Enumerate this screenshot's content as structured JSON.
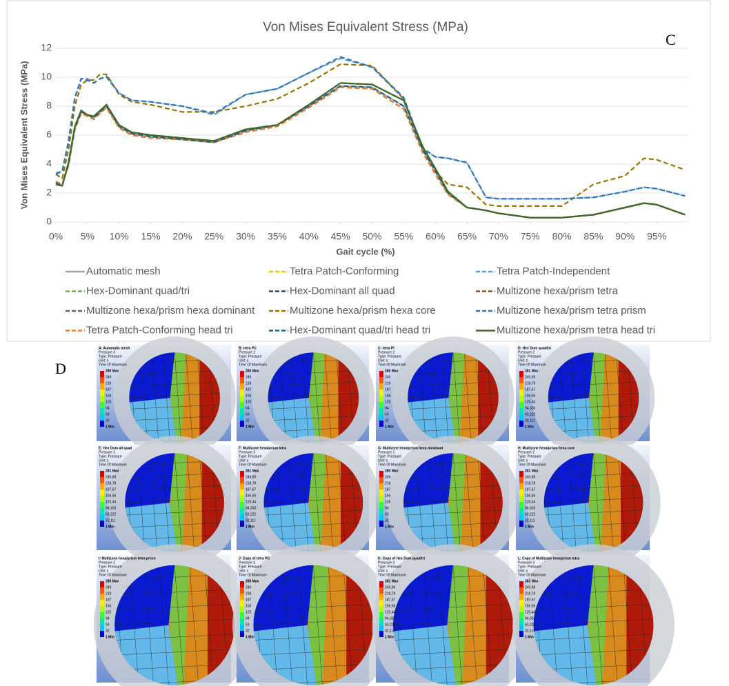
{
  "chart_data": {
    "type": "line",
    "title": "Von Mises Equivalent Stress (MPa)",
    "panel_label": "C",
    "x_label": "Gait cycle (%)",
    "y_label": "Von Mises Equivalent Stress (MPa)",
    "x": [
      0,
      1,
      2,
      3,
      4,
      5,
      6,
      7,
      8,
      10,
      12,
      15,
      20,
      25,
      30,
      35,
      40,
      45,
      50,
      55,
      58,
      60,
      62,
      65,
      68,
      70,
      75,
      80,
      85,
      90,
      93,
      95,
      99.5
    ],
    "xlim": [
      0,
      100
    ],
    "ylim": [
      0,
      12
    ],
    "yticks": [
      0,
      2,
      4,
      6,
      8,
      10,
      12
    ],
    "xticks": [
      {
        "value": 0,
        "label": "0%"
      },
      {
        "value": 5,
        "label": "5%"
      },
      {
        "value": 10,
        "label": "10%"
      },
      {
        "value": 15,
        "label": "15%"
      },
      {
        "value": 20,
        "label": "20%"
      },
      {
        "value": 25,
        "label": "25%"
      },
      {
        "value": 30,
        "label": "30%"
      },
      {
        "value": 35,
        "label": "35%"
      },
      {
        "value": 40,
        "label": "40%"
      },
      {
        "value": 45,
        "label": "45%"
      },
      {
        "value": 50,
        "label": "50%"
      },
      {
        "value": 55,
        "label": "55%"
      },
      {
        "value": 60,
        "label": "60%"
      },
      {
        "value": 65,
        "label": "65%"
      },
      {
        "value": 70,
        "label": "70%"
      },
      {
        "value": 75,
        "label": "75%"
      },
      {
        "value": 80,
        "label": "80%"
      },
      {
        "value": 85,
        "label": "85%"
      },
      {
        "value": 90,
        "label": "90%"
      },
      {
        "value": 95,
        "label": "95%"
      }
    ],
    "grid": true,
    "series": [
      {
        "name": "Automatic mesh",
        "color": "#a5a5a5",
        "line_style": "solid",
        "values": [
          2.7,
          2.5,
          4.0,
          6.5,
          7.6,
          7.4,
          7.2,
          7.6,
          8.0,
          6.6,
          6.1,
          5.9,
          5.7,
          5.5,
          6.3,
          6.7,
          8.0,
          9.4,
          9.3,
          8.0,
          5.0,
          3.5,
          2.0,
          1.0,
          0.8,
          0.6,
          0.3,
          0.3,
          0.5,
          1.0,
          1.3,
          1.2,
          0.5
        ]
      },
      {
        "name": "Tetra Patch-Conforming",
        "color": "#ffc000",
        "line_style": "dashed",
        "values": [
          2.6,
          2.5,
          4.1,
          6.6,
          7.7,
          7.4,
          7.3,
          7.7,
          8.1,
          6.7,
          6.2,
          6.0,
          5.8,
          5.6,
          6.4,
          6.7,
          8.1,
          9.6,
          9.5,
          8.4,
          5.2,
          3.7,
          2.1,
          1.0,
          0.8,
          0.6,
          0.3,
          0.3,
          0.5,
          1.0,
          1.3,
          1.2,
          0.5
        ]
      },
      {
        "name": "Tetra Patch-Independent",
        "color": "#5b9bd5",
        "line_style": "dashed",
        "values": [
          3.4,
          3.5,
          5.5,
          8.5,
          9.9,
          9.9,
          9.6,
          9.9,
          10.1,
          8.9,
          8.4,
          8.3,
          8.0,
          7.4,
          8.8,
          9.2,
          10.3,
          11.3,
          10.7,
          8.5,
          5.0,
          4.5,
          4.4,
          4.1,
          1.7,
          1.6,
          1.6,
          1.6,
          1.7,
          2.1,
          2.4,
          2.3,
          1.8
        ]
      },
      {
        "name": "Hex-Dominant quad/tri",
        "color": "#70ad47",
        "line_style": "dashed",
        "values": [
          2.7,
          2.5,
          4.0,
          6.5,
          7.6,
          7.4,
          7.2,
          7.6,
          8.0,
          6.6,
          6.1,
          5.9,
          5.7,
          5.5,
          6.3,
          6.7,
          8.0,
          9.4,
          9.3,
          8.0,
          5.0,
          3.5,
          2.0,
          1.0,
          0.8,
          0.6,
          0.3,
          0.3,
          0.5,
          1.0,
          1.3,
          1.2,
          0.5
        ]
      },
      {
        "name": "Hex-Dominant all quad",
        "color": "#264478",
        "line_style": "dashed",
        "values": [
          2.6,
          2.5,
          4.1,
          6.6,
          7.7,
          7.4,
          7.3,
          7.7,
          8.1,
          6.7,
          6.2,
          6.0,
          5.8,
          5.6,
          6.4,
          6.7,
          8.1,
          9.6,
          9.5,
          8.4,
          5.2,
          3.7,
          2.1,
          1.0,
          0.8,
          0.6,
          0.3,
          0.3,
          0.5,
          1.0,
          1.3,
          1.2,
          0.5
        ]
      },
      {
        "name": "Multizone hexa/prism tetra",
        "color": "#9e480e",
        "line_style": "dashed",
        "values": [
          2.8,
          2.6,
          3.9,
          6.4,
          7.5,
          7.3,
          7.1,
          7.5,
          7.9,
          6.5,
          6.0,
          5.8,
          5.7,
          5.5,
          6.2,
          6.6,
          7.9,
          9.3,
          9.2,
          7.8,
          4.8,
          3.3,
          1.9,
          1.0,
          0.8,
          0.6,
          0.3,
          0.3,
          0.5,
          1.0,
          1.3,
          1.2,
          0.5
        ]
      },
      {
        "name": "Multizone hexa/prism hexa dominant",
        "color": "#636363",
        "line_style": "dashed",
        "values": [
          2.6,
          2.5,
          4.1,
          6.6,
          7.7,
          7.4,
          7.3,
          7.7,
          8.1,
          6.7,
          6.2,
          6.0,
          5.8,
          5.6,
          6.4,
          6.7,
          8.1,
          9.6,
          9.5,
          8.4,
          5.2,
          3.7,
          2.1,
          1.0,
          0.8,
          0.6,
          0.3,
          0.3,
          0.5,
          1.0,
          1.3,
          1.2,
          0.5
        ]
      },
      {
        "name": "Multizone hexa/prism hexa core",
        "color": "#997300",
        "line_style": "dashed",
        "values": [
          3.3,
          3.0,
          5.0,
          8.0,
          9.5,
          9.8,
          9.8,
          10.2,
          10.2,
          8.8,
          8.3,
          8.1,
          7.6,
          7.6,
          8.0,
          8.5,
          9.6,
          10.9,
          10.8,
          8.5,
          5.0,
          3.5,
          2.6,
          2.4,
          1.2,
          1.1,
          1.1,
          1.1,
          2.6,
          3.2,
          4.4,
          4.3,
          3.6
        ]
      },
      {
        "name": "Multizone hexa/prism tetra prism",
        "color": "#2e75b6",
        "line_style": "dashed",
        "values": [
          3.3,
          3.5,
          5.6,
          8.6,
          9.9,
          9.8,
          9.6,
          9.9,
          10.0,
          8.9,
          8.4,
          8.3,
          8.0,
          7.5,
          8.8,
          9.2,
          10.3,
          11.4,
          10.7,
          8.6,
          5.1,
          4.5,
          4.4,
          4.1,
          1.7,
          1.6,
          1.6,
          1.6,
          1.7,
          2.1,
          2.4,
          2.3,
          1.8
        ]
      },
      {
        "name": "Tetra Patch-Conforming head tri",
        "color": "#ed7d31",
        "line_style": "dashed",
        "values": [
          2.8,
          2.6,
          3.9,
          6.4,
          7.5,
          7.3,
          7.1,
          7.5,
          7.9,
          6.5,
          6.0,
          5.8,
          5.7,
          5.5,
          6.2,
          6.6,
          7.9,
          9.3,
          9.2,
          7.8,
          4.8,
          3.3,
          1.9,
          1.0,
          0.8,
          0.6,
          0.3,
          0.3,
          0.5,
          1.0,
          1.3,
          1.2,
          0.5
        ]
      },
      {
        "name": "Hex-Dominant quad/tri head tri",
        "color": "#1f6391",
        "line_style": "dashed",
        "values": [
          2.7,
          2.5,
          4.0,
          6.5,
          7.6,
          7.4,
          7.2,
          7.6,
          8.0,
          6.6,
          6.1,
          5.9,
          5.7,
          5.5,
          6.3,
          6.7,
          8.0,
          9.4,
          9.3,
          8.0,
          5.0,
          3.5,
          2.0,
          1.0,
          0.8,
          0.6,
          0.3,
          0.3,
          0.5,
          1.0,
          1.3,
          1.2,
          0.5
        ]
      },
      {
        "name": "Multizone hexa/prism tetra head tri",
        "color": "#43682b",
        "line_style": "solid",
        "values": [
          2.6,
          2.5,
          4.1,
          6.6,
          7.7,
          7.4,
          7.3,
          7.7,
          8.1,
          6.7,
          6.2,
          6.0,
          5.8,
          5.6,
          6.4,
          6.7,
          8.1,
          9.6,
          9.5,
          8.4,
          5.2,
          3.7,
          2.1,
          1.0,
          0.8,
          0.6,
          0.3,
          0.3,
          0.5,
          1.0,
          1.3,
          1.2,
          0.5
        ]
      }
    ]
  },
  "figure_d": {
    "label": "D",
    "panels": [
      {
        "title": "A: Automatic mesh",
        "lines": [
          "Pressure 3",
          "Type: Pressure",
          "Unit: s",
          "Time Of Maximum"
        ],
        "scale": [
          "280 Max",
          "249",
          "218",
          "187",
          "156",
          "125",
          "94",
          "63",
          "32",
          "1 Min"
        ]
      },
      {
        "title": "B: tetra PC",
        "lines": [
          "Pressure 2",
          "Type: Pressure",
          "Unit: s",
          "Time Of Maximum"
        ],
        "scale": [
          "280 Max",
          "249",
          "218",
          "187",
          "156",
          "125",
          "94",
          "63",
          "32",
          "1 Min"
        ]
      },
      {
        "title": "C: tetra PI",
        "lines": [
          "Pressure 2",
          "Type: Pressure",
          "Unit: s",
          "Time Of Maximum"
        ],
        "scale": [
          "280 Max",
          "249",
          "218",
          "187",
          "156",
          "125",
          "94",
          "63",
          "32",
          "1 Min"
        ]
      },
      {
        "title": "D: Hex Dom quad/tri",
        "lines": [
          "Pressure 2",
          "Type: Pressure",
          "Unit: s",
          "Time Of Maximum"
        ],
        "scale": [
          "281 Max",
          "249,89",
          "218,78",
          "187,67",
          "156,56",
          "125,44",
          "94,333",
          "63,222",
          "32,111",
          "1 Min"
        ]
      },
      {
        "title": "E: Hex Dom all quad",
        "lines": [
          "Pressure 2",
          "Type: Pressure",
          "Unit: s",
          "Time Of Maximum"
        ],
        "scale": [
          "281 Max",
          "249,89",
          "218,78",
          "187,67",
          "156,56",
          "125,44",
          "94,333",
          "63,222",
          "32,111",
          "1 Min"
        ]
      },
      {
        "title": "F: Multizone hexa/prism tetra",
        "lines": [
          "Pressure 3",
          "Type: Pressure",
          "Unit: s",
          "Time Of Maximum"
        ],
        "scale": [
          "281 Max",
          "249,89",
          "218,78",
          "187,67",
          "156,56",
          "125,44",
          "94,333",
          "63,222",
          "32,111",
          "1 Min"
        ]
      },
      {
        "title": "G: Multizone hexa/prism hexa dominant",
        "lines": [
          "Pressure 2",
          "Type: Pressure",
          "Unit: s",
          "Time Of Maximum"
        ],
        "scale": [
          "280 Max",
          "249",
          "218",
          "187",
          "156",
          "125",
          "94",
          "63",
          "32",
          "1 Min"
        ]
      },
      {
        "title": "H: Multizone hexa/prism hexa core",
        "lines": [
          "Pressure 2",
          "Type: Pressure",
          "Unit: s",
          "Time Of Maximum"
        ],
        "scale": [
          "281 Max",
          "249,89",
          "218,78",
          "187,67",
          "156,56",
          "125,44",
          "94,333",
          "63,222",
          "32,111",
          "1 Min"
        ]
      },
      {
        "title": "I: Multizone hexa/prism tetra prism",
        "lines": [
          "Pressure 2",
          "Type: Pressure",
          "Unit: s",
          "Time Of Maximum"
        ],
        "scale": [
          "280 Max",
          "249",
          "218",
          "187",
          "156",
          "125",
          "94",
          "63",
          "32",
          "1 Min"
        ]
      },
      {
        "title": "J: Copy of tetra PC",
        "lines": [
          "Pressure 3",
          "Type: Pressure",
          "Unit: s",
          "Time Of Maximum"
        ],
        "scale": [
          "280 Max",
          "249",
          "218",
          "187",
          "156",
          "125",
          "94",
          "63",
          "32",
          "1 Min"
        ]
      },
      {
        "title": "K: Copy of Hex Dom quad/tri",
        "lines": [
          "Pressure 3",
          "Type: Pressure",
          "Unit: s",
          "Time Of Maximum"
        ],
        "scale": [
          "281 Max",
          "249,89",
          "218,78",
          "187,67",
          "156,56",
          "125,44",
          "94,333",
          "63,222",
          "32,111",
          "1 Min"
        ]
      },
      {
        "title": "L: Copy of Multizone hexa/prism tetra",
        "lines": [
          "Pressure 3",
          "Type: Pressure",
          "Unit: s",
          "Time Of Maximum"
        ],
        "scale": [
          "281 Max",
          "249,89",
          "218,78",
          "187,67",
          "156,56",
          "125,44",
          "94,333",
          "63,222",
          "32,111",
          "1 Min"
        ]
      }
    ]
  }
}
